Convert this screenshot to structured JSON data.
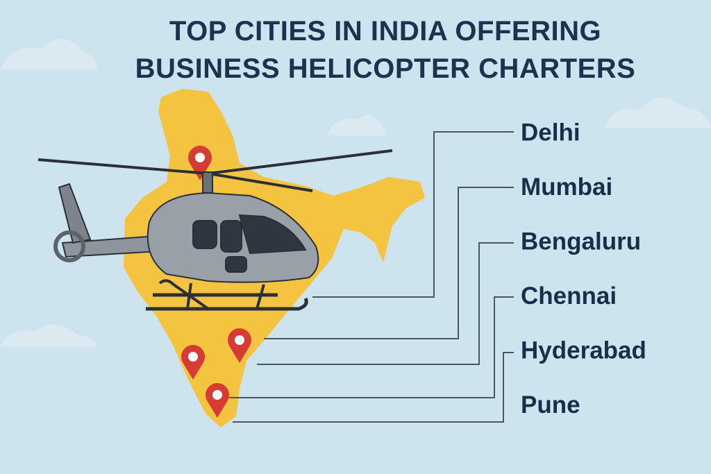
{
  "header": {
    "title_lines": [
      "TOP CITIES IN INDIA OFFERING",
      "BUSINESS HELICOPTER CHARTERS"
    ]
  },
  "cities": [
    "Delhi",
    "Mumbai",
    "Bengaluru",
    "Chennai",
    "Hyderabad",
    "Pune"
  ]
}
